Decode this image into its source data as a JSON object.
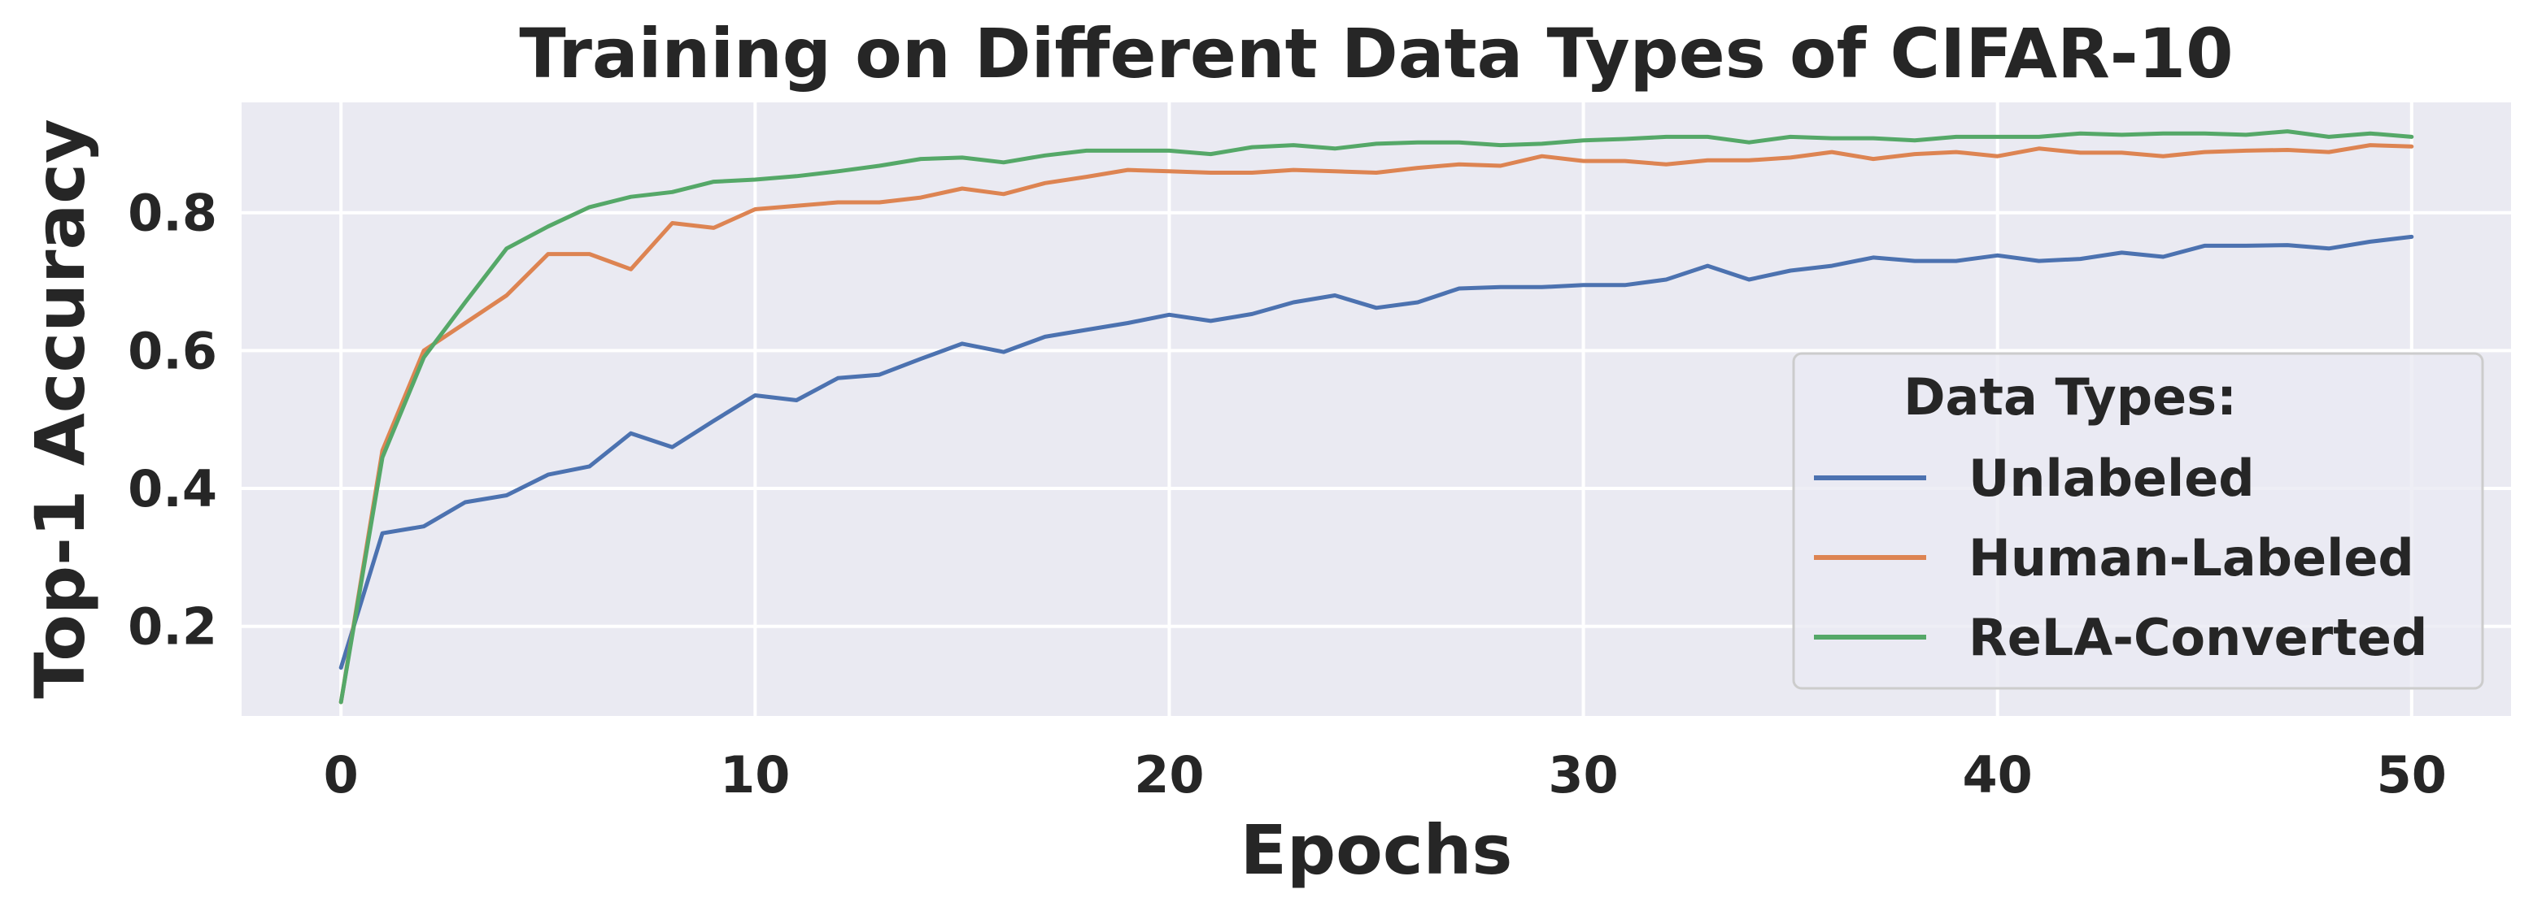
{
  "chart_data": {
    "type": "line",
    "title": "Training on Different Data Types of CIFAR-10",
    "xlabel": "Epochs",
    "ylabel": "Top-1 Accuracy",
    "xlim": [
      -2.4,
      52.4
    ],
    "ylim": [
      0.07,
      0.96
    ],
    "xticks": [
      0,
      10,
      20,
      30,
      40,
      50
    ],
    "xtick_labels": [
      "0",
      "10",
      "20",
      "30",
      "40",
      "50"
    ],
    "yticks": [
      0.2,
      0.4,
      0.6,
      0.8
    ],
    "ytick_labels": [
      "0.2",
      "0.4",
      "0.6",
      "0.8"
    ],
    "grid": true,
    "legend": {
      "title": "Data Types:",
      "position": "lower-right"
    },
    "x": [
      0,
      1,
      2,
      3,
      4,
      5,
      6,
      7,
      8,
      9,
      10,
      11,
      12,
      13,
      14,
      15,
      16,
      17,
      18,
      19,
      20,
      21,
      22,
      23,
      24,
      25,
      26,
      27,
      28,
      29,
      30,
      31,
      32,
      33,
      34,
      35,
      36,
      37,
      38,
      39,
      40,
      41,
      42,
      43,
      44,
      45,
      46,
      47,
      48,
      49,
      50
    ],
    "series": [
      {
        "name": "Unlabeled",
        "color": "#4c72b0",
        "values": [
          0.14,
          0.335,
          0.345,
          0.38,
          0.39,
          0.42,
          0.432,
          0.48,
          0.46,
          0.498,
          0.535,
          0.528,
          0.56,
          0.565,
          0.588,
          0.61,
          0.598,
          0.62,
          0.63,
          0.64,
          0.652,
          0.643,
          0.653,
          0.67,
          0.68,
          0.662,
          0.67,
          0.69,
          0.692,
          0.692,
          0.695,
          0.695,
          0.703,
          0.723,
          0.703,
          0.716,
          0.723,
          0.735,
          0.73,
          0.73,
          0.738,
          0.73,
          0.733,
          0.742,
          0.736,
          0.752,
          0.752,
          0.753,
          0.748,
          0.758,
          0.765
        ]
      },
      {
        "name": "Human-Labeled",
        "color": "#dd8452",
        "values": [
          0.09,
          0.455,
          0.6,
          0.64,
          0.68,
          0.74,
          0.74,
          0.718,
          0.785,
          0.778,
          0.805,
          0.81,
          0.815,
          0.815,
          0.822,
          0.835,
          0.827,
          0.843,
          0.852,
          0.862,
          0.86,
          0.858,
          0.858,
          0.862,
          0.86,
          0.858,
          0.865,
          0.87,
          0.868,
          0.882,
          0.875,
          0.875,
          0.87,
          0.876,
          0.876,
          0.88,
          0.888,
          0.878,
          0.885,
          0.888,
          0.882,
          0.893,
          0.887,
          0.887,
          0.882,
          0.888,
          0.89,
          0.891,
          0.888,
          0.898,
          0.896
        ]
      },
      {
        "name": "ReLA-Converted",
        "color": "#55a868",
        "values": [
          0.09,
          0.445,
          0.59,
          0.67,
          0.748,
          0.78,
          0.808,
          0.823,
          0.83,
          0.845,
          0.848,
          0.853,
          0.86,
          0.868,
          0.878,
          0.88,
          0.873,
          0.883,
          0.89,
          0.89,
          0.89,
          0.885,
          0.895,
          0.898,
          0.893,
          0.9,
          0.902,
          0.902,
          0.898,
          0.9,
          0.905,
          0.907,
          0.91,
          0.91,
          0.902,
          0.91,
          0.908,
          0.908,
          0.905,
          0.91,
          0.91,
          0.91,
          0.915,
          0.913,
          0.915,
          0.915,
          0.913,
          0.918,
          0.91,
          0.915,
          0.91
        ]
      }
    ]
  }
}
